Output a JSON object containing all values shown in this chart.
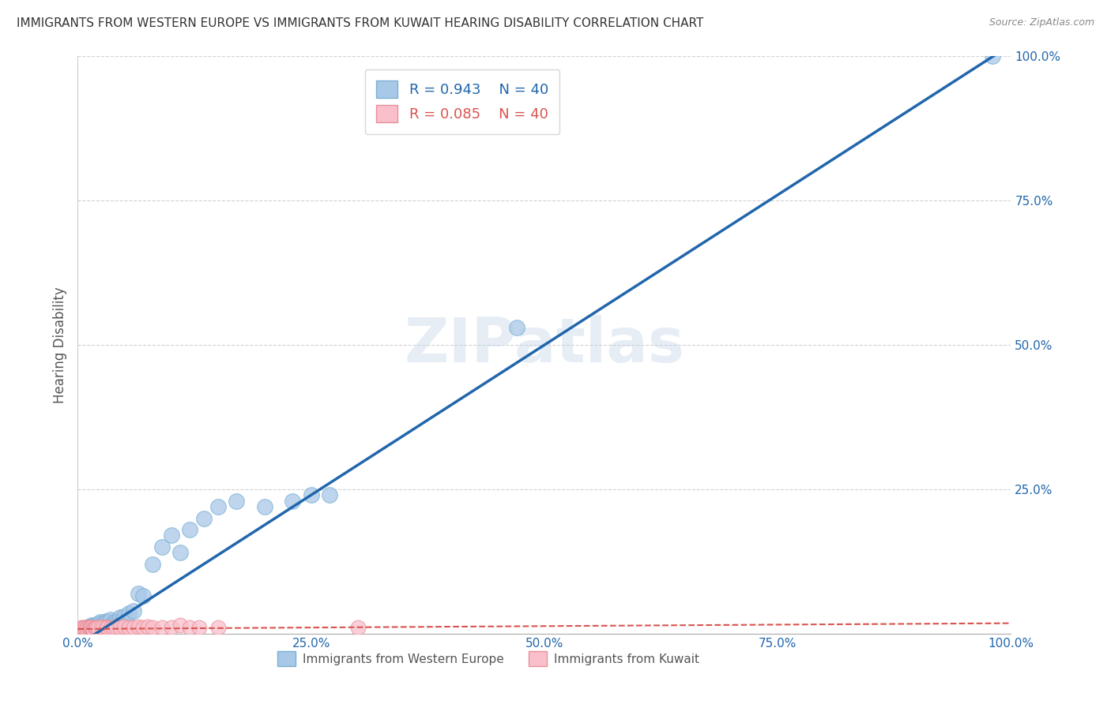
{
  "title": "IMMIGRANTS FROM WESTERN EUROPE VS IMMIGRANTS FROM KUWAIT HEARING DISABILITY CORRELATION CHART",
  "source": "Source: ZipAtlas.com",
  "ylabel": "Hearing Disability",
  "xlim": [
    0,
    1.0
  ],
  "ylim": [
    0,
    1.0
  ],
  "xtick_labels": [
    "0.0%",
    "",
    "",
    "",
    "",
    "25.0%",
    "",
    "",
    "",
    "",
    "50.0%",
    "",
    "",
    "",
    "",
    "75.0%",
    "",
    "",
    "",
    "",
    "100.0%"
  ],
  "xtick_positions": [
    0,
    0.05,
    0.1,
    0.15,
    0.2,
    0.25,
    0.3,
    0.35,
    0.4,
    0.45,
    0.5,
    0.55,
    0.6,
    0.65,
    0.7,
    0.75,
    0.8,
    0.85,
    0.9,
    0.95,
    1.0
  ],
  "ytick_labels": [
    "25.0%",
    "50.0%",
    "75.0%",
    "100.0%"
  ],
  "ytick_positions": [
    0.25,
    0.5,
    0.75,
    1.0
  ],
  "blue_R": "0.943",
  "blue_N": "40",
  "pink_R": "0.085",
  "pink_N": "40",
  "blue_color": "#a8c8e8",
  "blue_edge_color": "#7bafd4",
  "blue_line_color": "#2166ac",
  "pink_color": "#f9c0cb",
  "pink_edge_color": "#e8909a",
  "pink_line_color": "#d9534f",
  "watermark": "ZIPatlas",
  "legend_label_blue": "Immigrants from Western Europe",
  "legend_label_pink": "Immigrants from Kuwait",
  "blue_scatter_x": [
    0.005,
    0.008,
    0.01,
    0.012,
    0.013,
    0.015,
    0.017,
    0.018,
    0.02,
    0.022,
    0.024,
    0.026,
    0.028,
    0.03,
    0.032,
    0.035,
    0.038,
    0.04,
    0.042,
    0.045,
    0.048,
    0.05,
    0.055,
    0.06,
    0.065,
    0.07,
    0.08,
    0.09,
    0.1,
    0.11,
    0.12,
    0.135,
    0.15,
    0.17,
    0.2,
    0.23,
    0.25,
    0.27,
    0.47,
    0.98
  ],
  "blue_scatter_y": [
    0.005,
    0.008,
    0.01,
    0.012,
    0.01,
    0.015,
    0.013,
    0.012,
    0.015,
    0.018,
    0.02,
    0.018,
    0.016,
    0.022,
    0.02,
    0.025,
    0.018,
    0.022,
    0.02,
    0.028,
    0.022,
    0.03,
    0.035,
    0.04,
    0.07,
    0.065,
    0.12,
    0.15,
    0.17,
    0.14,
    0.18,
    0.2,
    0.22,
    0.23,
    0.22,
    0.23,
    0.24,
    0.24,
    0.53,
    1.0
  ],
  "pink_scatter_x": [
    0.004,
    0.005,
    0.006,
    0.007,
    0.008,
    0.009,
    0.01,
    0.011,
    0.012,
    0.013,
    0.014,
    0.015,
    0.016,
    0.017,
    0.018,
    0.019,
    0.02,
    0.022,
    0.025,
    0.027,
    0.03,
    0.032,
    0.035,
    0.038,
    0.04,
    0.045,
    0.05,
    0.055,
    0.06,
    0.065,
    0.07,
    0.075,
    0.08,
    0.09,
    0.1,
    0.11,
    0.12,
    0.13,
    0.15,
    0.3
  ],
  "pink_scatter_y": [
    0.01,
    0.01,
    0.01,
    0.01,
    0.008,
    0.01,
    0.008,
    0.01,
    0.01,
    0.01,
    0.01,
    0.01,
    0.008,
    0.008,
    0.01,
    0.01,
    0.01,
    0.01,
    0.012,
    0.01,
    0.01,
    0.01,
    0.01,
    0.01,
    0.012,
    0.01,
    0.012,
    0.01,
    0.01,
    0.012,
    0.01,
    0.012,
    0.01,
    0.01,
    0.01,
    0.015,
    0.01,
    0.01,
    0.01,
    0.01
  ],
  "blue_line_x": [
    0.0,
    1.0
  ],
  "blue_line_y": [
    -0.02,
    1.02
  ],
  "pink_line_x": [
    0.0,
    1.0
  ],
  "pink_line_y": [
    0.008,
    0.018
  ],
  "background_color": "#ffffff",
  "grid_color": "#cccccc"
}
